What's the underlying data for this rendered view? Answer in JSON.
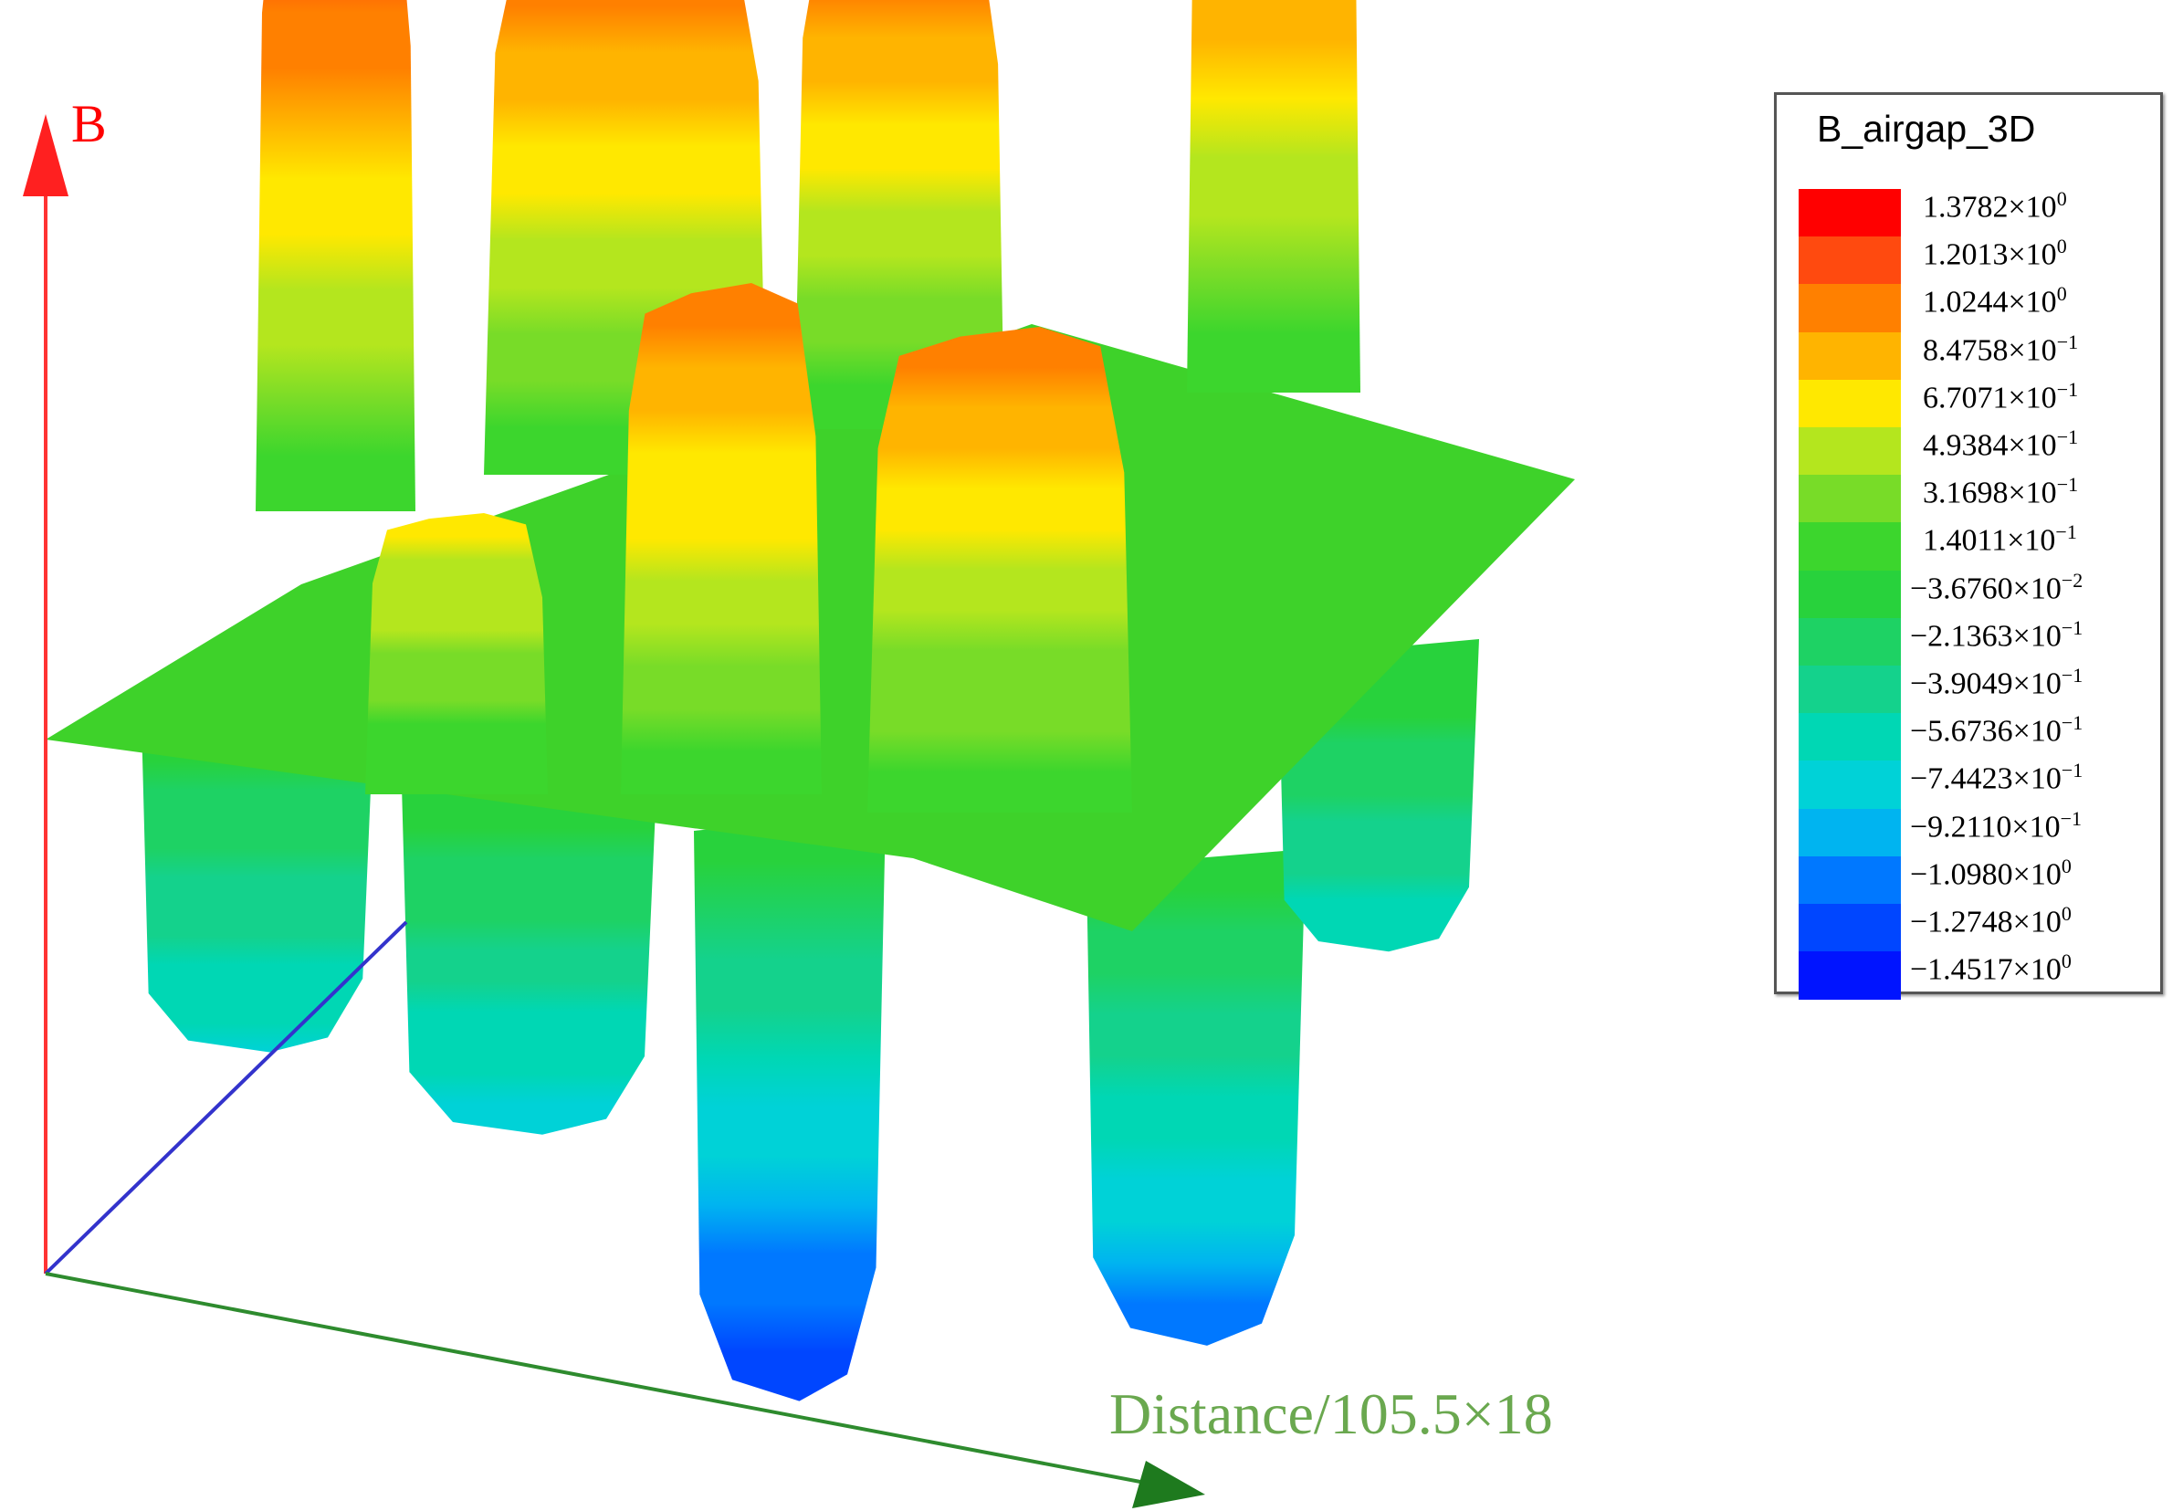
{
  "chart_data": {
    "type": "surface",
    "title": "",
    "axes": {
      "z_label": "B",
      "z_label_color": "#ff0000",
      "x_label": "Distance/105.5×18",
      "x_label_color": "#6aa84f",
      "y_label": "",
      "z_axis_color": "#ff3333",
      "x_axis_color": "#2e8b2e",
      "y_axis_color": "#3333cc"
    },
    "colorbar": {
      "title": "B_airgap_3D",
      "placement": "right",
      "levels": [
        {
          "label": "1.3782×10",
          "exp": "0",
          "value": 1.3782,
          "color": "#ff0000"
        },
        {
          "label": "1.2013×10",
          "exp": "0",
          "value": 1.2013,
          "color": "#ff4a0f"
        },
        {
          "label": "1.0244×10",
          "exp": "0",
          "value": 1.0244,
          "color": "#ff8000"
        },
        {
          "label": "8.4758×10",
          "exp": "−1",
          "value": 0.84758,
          "color": "#ffb400"
        },
        {
          "label": "6.7071×10",
          "exp": "−1",
          "value": 0.67071,
          "color": "#ffe800"
        },
        {
          "label": "4.9384×10",
          "exp": "−1",
          "value": 0.49384,
          "color": "#b4e61e"
        },
        {
          "label": "3.1698×10",
          "exp": "−1",
          "value": 0.31698,
          "color": "#78dc28"
        },
        {
          "label": "1.4011×10",
          "exp": "−1",
          "value": 0.14011,
          "color": "#3cd62d"
        },
        {
          "label": "−3.6760×10",
          "exp": "−2",
          "value": -0.03676,
          "color": "#28d23c"
        },
        {
          "label": "−2.1363×10",
          "exp": "−1",
          "value": -0.21363,
          "color": "#1ed264"
        },
        {
          "label": "−3.9049×10",
          "exp": "−1",
          "value": -0.39049,
          "color": "#14d28c"
        },
        {
          "label": "−5.6736×10",
          "exp": "−1",
          "value": -0.56736,
          "color": "#00d7b4"
        },
        {
          "label": "−7.4423×10",
          "exp": "−1",
          "value": -0.74423,
          "color": "#00d2d7"
        },
        {
          "label": "−9.2110×10",
          "exp": "−1",
          "value": -0.9211,
          "color": "#00b4f0"
        },
        {
          "label": "−1.0980×10",
          "exp": "0",
          "value": -1.098,
          "color": "#0078ff"
        },
        {
          "label": "−1.2748×10",
          "exp": "0",
          "value": -1.2748,
          "color": "#0046ff"
        },
        {
          "label": "−1.4517×10",
          "exp": "0",
          "value": -1.4517,
          "color": "#0014ff"
        }
      ]
    },
    "peaks": [
      {
        "row": "back",
        "index": 1,
        "value": 1.3
      },
      {
        "row": "back",
        "index": 2,
        "value": 1.1
      },
      {
        "row": "back",
        "index": 3,
        "value": 1.02
      },
      {
        "row": "back",
        "index": 4,
        "value": 1.38
      },
      {
        "row": "front",
        "index": 1,
        "value": 0.55
      },
      {
        "row": "front",
        "index": 2,
        "value": 1.0
      },
      {
        "row": "front",
        "index": 3,
        "value": 0.95
      }
    ],
    "troughs": [
      {
        "index": 1,
        "value": -0.8
      },
      {
        "index": 2,
        "value": -0.85
      },
      {
        "index": 3,
        "value": -1.45
      },
      {
        "index": 4,
        "value": -1.2
      },
      {
        "index": 5,
        "value": -0.7
      }
    ]
  }
}
